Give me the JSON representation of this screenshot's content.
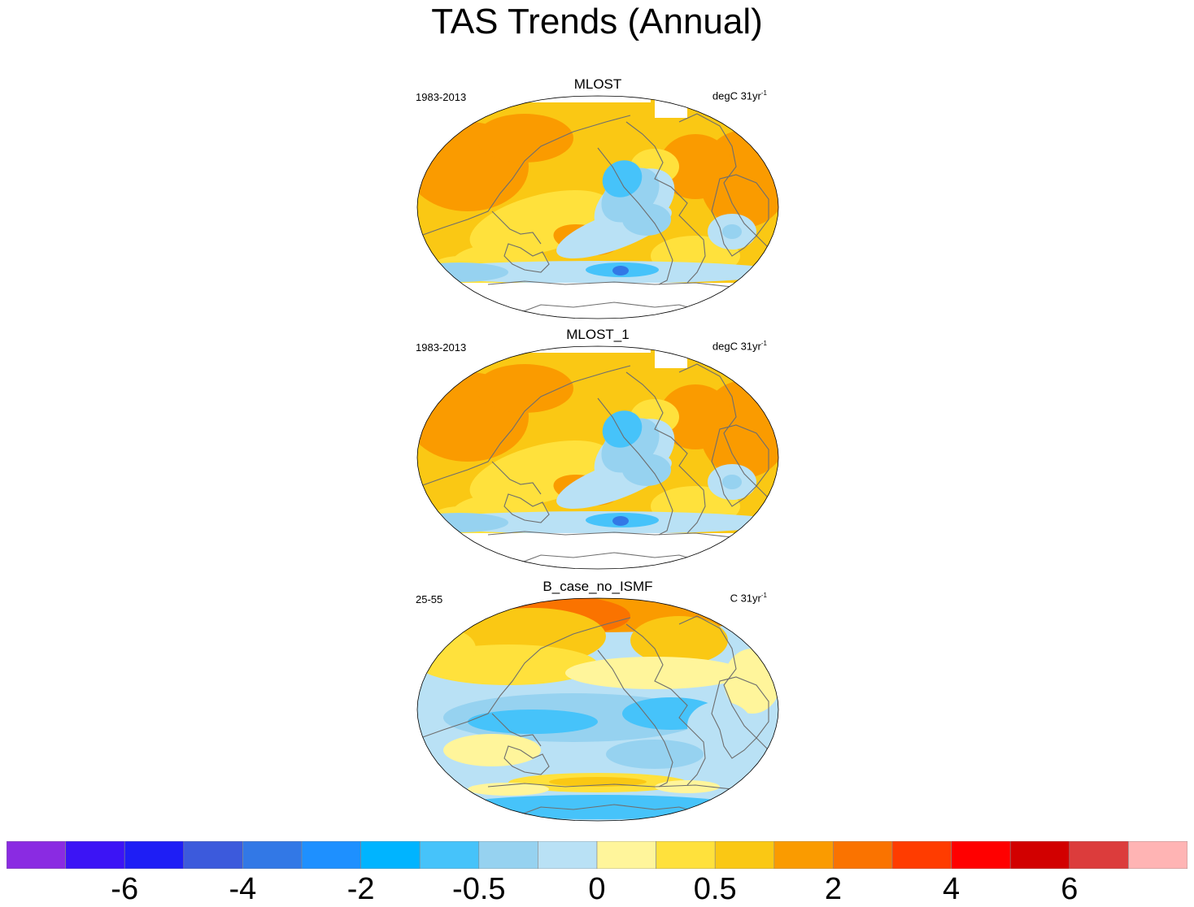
{
  "chart_data": {
    "type": "heatmap",
    "title": "TAS Trends (Annual)",
    "projection": "robinson",
    "panels": [
      {
        "name": "MLOST",
        "period": "1983-2013",
        "units": "degC 31yr",
        "units_exp": "-1",
        "masked_polar": true
      },
      {
        "name": "MLOST_1",
        "period": "1983-2013",
        "units": "degC 31yr",
        "units_exp": "-1",
        "masked_polar": true
      },
      {
        "name": "B_case_no_ISMF",
        "period": "25-55",
        "units": "C 31yr",
        "units_exp": "-1",
        "masked_polar": false
      }
    ],
    "colorbar": {
      "colors": [
        "#8a2be2",
        "#3c14f5",
        "#1e1ef5",
        "#3c5adc",
        "#3278e6",
        "#1e90ff",
        "#00b4ff",
        "#46c3fa",
        "#96d2f0",
        "#b9e1f5",
        "#fff59b",
        "#ffe13c",
        "#fac814",
        "#fa9b00",
        "#fa7300",
        "#ff3c00",
        "#ff0000",
        "#d20000",
        "#dc3c3c",
        "#ffb4b4"
      ],
      "labels": [
        {
          "text": "-6",
          "boundary": 2
        },
        {
          "text": "-4",
          "boundary": 4
        },
        {
          "text": "-2",
          "boundary": 6
        },
        {
          "text": "-0.5",
          "boundary": 8
        },
        {
          "text": "0",
          "boundary": 10
        },
        {
          "text": "0.5",
          "boundary": 12
        },
        {
          "text": "2",
          "boundary": 14
        },
        {
          "text": "4",
          "boundary": 16
        },
        {
          "text": "6",
          "boundary": 18
        }
      ]
    }
  }
}
